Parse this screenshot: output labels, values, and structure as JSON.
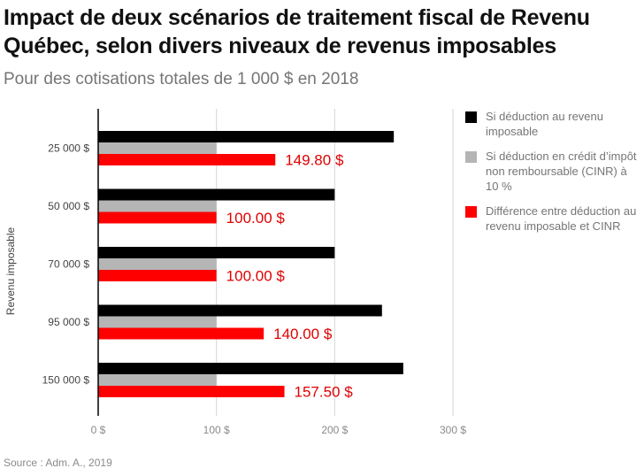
{
  "header": {
    "title": "Impact de deux scénarios de traitement fiscal de Revenu Québec, selon divers niveaux de revenus imposables",
    "subtitle": "Pour des cotisations totales de 1 000 $ en 2018"
  },
  "footer": {
    "source": "Source : Adm. A., 2019"
  },
  "chart_data": {
    "type": "bar",
    "orientation": "horizontal",
    "title": "Impact de deux scénarios de traitement fiscal de Revenu Québec, selon divers niveaux de revenus imposables",
    "subtitle": "Pour des cotisations totales de 1 000 $ en 2018",
    "ylabel": "Revenu imposable",
    "xlabel": "",
    "categories": [
      "25 000 $",
      "50 000 $",
      "70 000 $",
      "95 000 $",
      "150 000 $"
    ],
    "xlim": [
      0,
      300
    ],
    "x_ticks": [
      0,
      100,
      200,
      300
    ],
    "x_tick_labels": [
      "0 $",
      "100 $",
      "200 $",
      "300 $"
    ],
    "grid": "vertical",
    "legend_position": "right",
    "series": [
      {
        "name": "Si déduction au revenu imposable",
        "color": "#000000",
        "values": [
          250,
          200,
          200,
          240,
          258
        ]
      },
      {
        "name": "Si déduction en crédit d’impôt non remboursable (CINR) à 10 %",
        "color": "#b5b5b5",
        "values": [
          100,
          100,
          100,
          100,
          100
        ]
      },
      {
        "name": "Différence entre déduction au revenu imposable et CINR",
        "color": "#ff0000",
        "values": [
          149.8,
          100,
          100,
          140,
          157.5
        ],
        "data_labels": [
          "149.80 $",
          "100.00 $",
          "100.00 $",
          "140.00 $",
          "157.50 $"
        ]
      }
    ]
  }
}
